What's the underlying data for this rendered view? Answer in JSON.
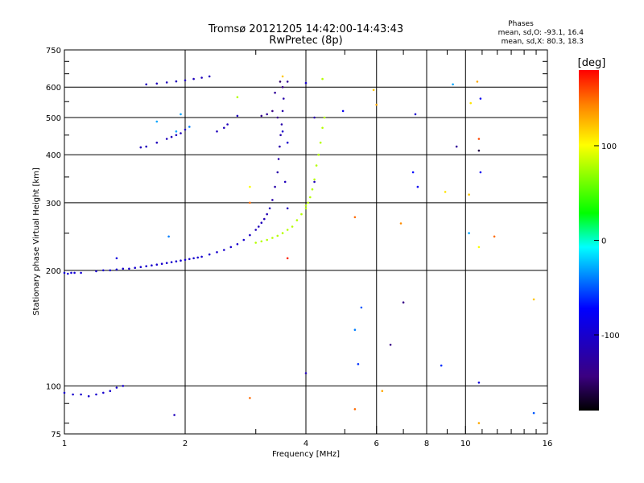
{
  "chart_data": {
    "type": "scatter",
    "title": "Tromsø 20121205 14:42:00-14:43:43",
    "subtitle": "RwPretec (8p)",
    "xlabel": "Frequency [MHz]",
    "ylabel": "Stationary phase Virtual Height [km]",
    "x_scale": "log",
    "y_scale": "log",
    "xlim": [
      1,
      16
    ],
    "ylim": [
      75,
      750
    ],
    "x_ticks": [
      1,
      2,
      4,
      6,
      8,
      10,
      16
    ],
    "x_minor_ticks": [
      3,
      5,
      7,
      9,
      11,
      12,
      13,
      14,
      15
    ],
    "x_gridlines": [
      2,
      4,
      6,
      8,
      10
    ],
    "y_ticks": [
      75,
      100,
      200,
      300,
      400,
      500,
      600,
      750
    ],
    "y_gridlines": [
      100,
      200,
      300,
      400,
      500,
      600
    ],
    "grid": true,
    "colorbar": {
      "label": "[deg]",
      "range": [
        -180,
        180
      ],
      "ticks": [
        100,
        0,
        -100
      ],
      "colors": [
        "#000000",
        "#3b0080",
        "#0000ff",
        "#00ffff",
        "#00ff00",
        "#ffff00",
        "#ff8000",
        "#ff0000"
      ]
    },
    "phases": {
      "title": "Phases",
      "line_o": "mean, sd,O: -93.1, 16.4",
      "line_x": "mean, sd,X:  80.3, 18.3"
    },
    "series": [
      {
        "name": "O",
        "points": [
          [
            1.0,
            197,
            -95
          ],
          [
            1.02,
            196,
            -95
          ],
          [
            1.04,
            197,
            -95
          ],
          [
            1.06,
            197,
            -95
          ],
          [
            1.1,
            197,
            -95
          ],
          [
            1.2,
            199,
            -100
          ],
          [
            1.25,
            200,
            -100
          ],
          [
            1.3,
            200,
            -100
          ],
          [
            1.35,
            201,
            -100
          ],
          [
            1.4,
            202,
            -100
          ],
          [
            1.45,
            202,
            -100
          ],
          [
            1.5,
            203,
            -100
          ],
          [
            1.55,
            204,
            -100
          ],
          [
            1.6,
            205,
            -100
          ],
          [
            1.65,
            206,
            -100
          ],
          [
            1.7,
            207,
            -100
          ],
          [
            1.75,
            208,
            -100
          ],
          [
            1.8,
            209,
            -100
          ],
          [
            1.85,
            210,
            -100
          ],
          [
            1.9,
            211,
            -100
          ],
          [
            1.95,
            212,
            -100
          ],
          [
            2.0,
            213,
            -100
          ],
          [
            2.05,
            214,
            -100
          ],
          [
            2.1,
            215,
            -100
          ],
          [
            2.15,
            216,
            -100
          ],
          [
            2.2,
            217,
            -100
          ],
          [
            2.3,
            220,
            -100
          ],
          [
            2.4,
            223,
            -100
          ],
          [
            2.5,
            226,
            -100
          ],
          [
            2.6,
            230,
            -100
          ],
          [
            2.7,
            234,
            -100
          ],
          [
            2.8,
            240,
            -100
          ],
          [
            2.9,
            247,
            -105
          ],
          [
            3.0,
            255,
            -110
          ],
          [
            3.05,
            260,
            -110
          ],
          [
            3.1,
            266,
            -110
          ],
          [
            3.15,
            272,
            -115
          ],
          [
            3.2,
            280,
            -115
          ],
          [
            3.25,
            290,
            -115
          ],
          [
            3.3,
            305,
            -120
          ],
          [
            3.35,
            330,
            -120
          ],
          [
            3.4,
            360,
            -120
          ],
          [
            3.42,
            390,
            -120
          ],
          [
            3.44,
            420,
            -120
          ],
          [
            3.46,
            450,
            -120
          ],
          [
            3.48,
            480,
            -120
          ],
          [
            3.5,
            520,
            -120
          ],
          [
            3.52,
            560,
            -120
          ],
          [
            3.4,
            500,
            -140
          ],
          [
            3.3,
            520,
            -140
          ],
          [
            3.2,
            510,
            -130
          ],
          [
            3.1,
            505,
            -135
          ],
          [
            3.35,
            580,
            -130
          ],
          [
            3.45,
            620,
            -150
          ],
          [
            3.5,
            600,
            -140
          ],
          [
            3.6,
            620,
            -130
          ],
          [
            1.55,
            418,
            -110
          ],
          [
            1.6,
            420,
            -110
          ],
          [
            1.7,
            430,
            -110
          ],
          [
            1.8,
            440,
            -110
          ],
          [
            1.85,
            445,
            -110
          ],
          [
            1.9,
            450,
            -110
          ],
          [
            1.95,
            455,
            -110
          ],
          [
            2.0,
            465,
            -110
          ],
          [
            2.4,
            460,
            -110
          ],
          [
            2.5,
            470,
            -110
          ],
          [
            2.55,
            480,
            -110
          ],
          [
            2.7,
            505,
            -110
          ],
          [
            1.6,
            610,
            -110
          ],
          [
            1.7,
            613,
            -110
          ],
          [
            1.8,
            617,
            -110
          ],
          [
            1.9,
            621,
            -110
          ],
          [
            2.0,
            625,
            -110
          ],
          [
            2.1,
            630,
            -110
          ],
          [
            2.2,
            635,
            -110
          ],
          [
            2.3,
            640,
            -110
          ],
          [
            1.0,
            96,
            -100
          ],
          [
            1.05,
            95,
            -100
          ],
          [
            1.1,
            95,
            -100
          ],
          [
            1.15,
            94,
            -100
          ],
          [
            1.2,
            95,
            -100
          ],
          [
            1.25,
            96,
            -100
          ],
          [
            1.3,
            97,
            -100
          ],
          [
            1.35,
            99,
            -100
          ],
          [
            1.4,
            100,
            -100
          ],
          [
            1.9,
            460,
            -30
          ],
          [
            1.7,
            488,
            -30
          ],
          [
            2.05,
            473,
            -40
          ],
          [
            1.95,
            510,
            -30
          ],
          [
            1.82,
            245,
            -40
          ],
          [
            1.35,
            215,
            -90
          ],
          [
            3.6,
            430,
            -100
          ],
          [
            3.5,
            460,
            -100
          ],
          [
            3.55,
            340,
            -110
          ],
          [
            3.6,
            290,
            -110
          ],
          [
            4.0,
            108,
            -110
          ],
          [
            4.2,
            500,
            -120
          ],
          [
            4.2,
            340,
            -110
          ],
          [
            4.95,
            520,
            -80
          ],
          [
            5.3,
            140,
            -40
          ],
          [
            5.4,
            114,
            -60
          ],
          [
            5.5,
            160,
            -50
          ],
          [
            6.5,
            128,
            -140
          ],
          [
            7.0,
            165,
            -140
          ],
          [
            7.4,
            360,
            -70
          ],
          [
            7.6,
            330,
            -80
          ],
          [
            7.5,
            510,
            -100
          ],
          [
            8.7,
            113,
            -60
          ],
          [
            9.3,
            610,
            -30
          ],
          [
            9.5,
            420,
            -130
          ],
          [
            10.8,
            102,
            -90
          ],
          [
            10.9,
            560,
            -80
          ],
          [
            10.9,
            360,
            -80
          ],
          [
            10.8,
            410,
            -160
          ],
          [
            14.8,
            85,
            -50
          ],
          [
            1.88,
            84,
            -110
          ],
          [
            10.2,
            250,
            -30
          ],
          [
            4.0,
            615,
            -100
          ]
        ]
      },
      {
        "name": "X",
        "points": [
          [
            3.0,
            236,
            80
          ],
          [
            3.1,
            238,
            80
          ],
          [
            3.2,
            240,
            80
          ],
          [
            3.3,
            243,
            80
          ],
          [
            3.4,
            246,
            80
          ],
          [
            3.5,
            250,
            80
          ],
          [
            3.6,
            255,
            80
          ],
          [
            3.7,
            260,
            80
          ],
          [
            3.8,
            270,
            80
          ],
          [
            3.9,
            280,
            80
          ],
          [
            4.0,
            290,
            80
          ],
          [
            4.05,
            300,
            80
          ],
          [
            4.1,
            310,
            80
          ],
          [
            4.15,
            325,
            80
          ],
          [
            4.2,
            345,
            80
          ],
          [
            4.25,
            375,
            80
          ],
          [
            4.3,
            400,
            80
          ],
          [
            4.35,
            430,
            80
          ],
          [
            4.4,
            470,
            80
          ],
          [
            4.45,
            500,
            80
          ],
          [
            2.7,
            565,
            80
          ],
          [
            4.4,
            630,
            80
          ],
          [
            4.0,
            295,
            80
          ],
          [
            6.0,
            540,
            130
          ],
          [
            5.9,
            590,
            120
          ],
          [
            6.2,
            97,
            130
          ],
          [
            6.9,
            265,
            140
          ],
          [
            8.9,
            320,
            110
          ],
          [
            10.2,
            315,
            120
          ],
          [
            10.3,
            545,
            110
          ],
          [
            10.7,
            620,
            130
          ],
          [
            10.8,
            230,
            100
          ],
          [
            11.8,
            245,
            150
          ],
          [
            14.8,
            168,
            120
          ],
          [
            10.8,
            80,
            130
          ],
          [
            10.8,
            440,
            160
          ],
          [
            5.3,
            275,
            150
          ],
          [
            5.3,
            87,
            150
          ],
          [
            2.9,
            300,
            150
          ],
          [
            2.9,
            93,
            150
          ],
          [
            3.6,
            215,
            170
          ],
          [
            2.9,
            330,
            100
          ],
          [
            3.5,
            640,
            120
          ]
        ]
      }
    ]
  }
}
